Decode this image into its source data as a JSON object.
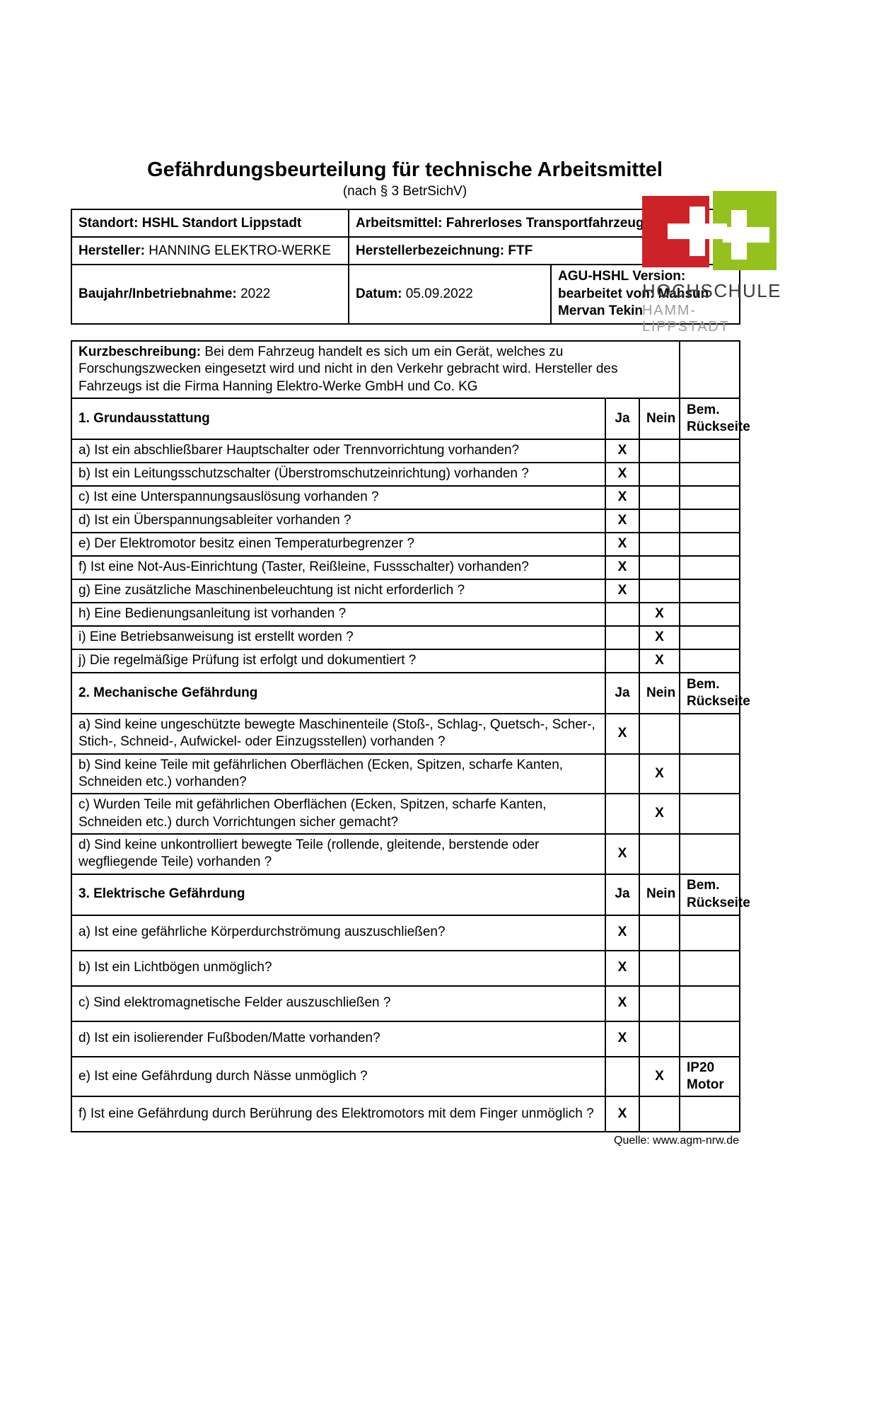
{
  "logo": {
    "line1": "HOCHSCHULE",
    "line2": "HAMM-LIPPSTADT",
    "red": "#cd2328",
    "green": "#95c11f"
  },
  "title": "Gefährdungsbeurteilung für technische Arbeitsmittel",
  "subtitle": "(nach § 3 BetrSichV)",
  "info": {
    "standort": {
      "label": "Standort:",
      "value": "HSHL Standort Lippstadt"
    },
    "arbeitsmittel": {
      "label": "Arbeitsmittel:",
      "value": "Fahrerloses Transportfahrzeug"
    },
    "hersteller": {
      "label": "Hersteller:",
      "value": "HANNING ELEKTRO-WERKE"
    },
    "herstellerbezeichnung": {
      "label": "Herstellerbezeichnung:",
      "value": "FTF"
    },
    "baujahr": {
      "label": "Baujahr/Inbetriebnahme:",
      "value": "2022"
    },
    "datum": {
      "label": "Datum:",
      "value": "05.09.2022"
    },
    "version": {
      "label": "AGU-HSHL Version:",
      "value": "bearbeitet von: Mahsun Mervan Tekin"
    }
  },
  "kurzbeschreibung": {
    "label": "Kurzbeschreibung:",
    "text": "Bei dem Fahrzeug handelt es sich um ein Gerät, welches zu Forschungszwecken eingesetzt wird und nicht in den Verkehr gebracht wird. Hersteller des Fahrzeugs ist die Firma Hanning Elektro-Werke GmbH und Co. KG"
  },
  "columns": {
    "ja": "Ja",
    "nein": "Nein",
    "bem": "Bem.\nRückseite"
  },
  "sections": [
    {
      "title": "1. Grundausstattung",
      "items": [
        {
          "text": "a) Ist ein abschließbarer Hauptschalter oder Trennvorrichtung vorhanden?",
          "ja": "X",
          "nein": "",
          "bem": ""
        },
        {
          "text": "b) Ist ein Leitungsschutzschalter (Überstromschutzeinrichtung) vorhanden ?",
          "ja": "X",
          "nein": "",
          "bem": ""
        },
        {
          "text": "c) Ist eine Unterspannungsauslösung vorhanden ?",
          "ja": "X",
          "nein": "",
          "bem": ""
        },
        {
          "text": "d) Ist ein Überspannungsableiter vorhanden ?",
          "ja": "X",
          "nein": "",
          "bem": ""
        },
        {
          "text": "e) Der Elektromotor besitz einen Temperaturbegrenzer ?",
          "ja": "X",
          "nein": "",
          "bem": ""
        },
        {
          "text": "f) Ist eine Not-Aus-Einrichtung (Taster, Reißleine, Fussschalter) vorhanden?",
          "ja": "X",
          "nein": "",
          "bem": ""
        },
        {
          "text": "g) Eine zusätzliche Maschinenbeleuchtung ist nicht erforderlich ?",
          "ja": "X",
          "nein": "",
          "bem": ""
        },
        {
          "text": "h) Eine Bedienungsanleitung ist vorhanden ?",
          "ja": "",
          "nein": "X",
          "bem": ""
        },
        {
          "text": "i) Eine Betriebsanweisung ist erstellt worden ?",
          "ja": "",
          "nein": "X",
          "bem": ""
        },
        {
          "text": "j) Die regelmäßige Prüfung ist erfolgt und dokumentiert ?",
          "ja": "",
          "nein": "X",
          "bem": ""
        }
      ]
    },
    {
      "title": "2. Mechanische Gefährdung",
      "items": [
        {
          "text": "a) Sind keine ungeschützte bewegte Maschinenteile (Stoß-, Schlag-, Quetsch-, Scher-, Stich-, Schneid-, Aufwickel- oder Einzugsstellen) vorhanden ?",
          "ja": "X",
          "nein": "",
          "bem": ""
        },
        {
          "text": "b) Sind keine Teile mit gefährlichen Oberflächen (Ecken, Spitzen, scharfe Kanten, Schneiden etc.) vorhanden?",
          "ja": "",
          "nein": "X",
          "bem": ""
        },
        {
          "text": "c) Wurden Teile mit gefährlichen Oberflächen (Ecken, Spitzen, scharfe Kanten, Schneiden etc.) durch Vorrichtungen sicher gemacht?",
          "ja": "",
          "nein": "X",
          "bem": ""
        },
        {
          "text": "d) Sind keine unkontrolliert bewegte Teile (rollende, gleitende, berstende oder wegfliegende Teile) vorhanden ?",
          "ja": "X",
          "nein": "",
          "bem": ""
        }
      ]
    },
    {
      "title": "3. Elektrische Gefährdung",
      "items": [
        {
          "text": "a) Ist eine gefährliche Körperdurchströmung auszuschließen?",
          "ja": "X",
          "nein": "",
          "bem": ""
        },
        {
          "text": "b) Ist ein Lichtbögen unmöglich?",
          "ja": "X",
          "nein": "",
          "bem": ""
        },
        {
          "text": "c) Sind elektromagnetische Felder auszuschließen ?",
          "ja": "X",
          "nein": "",
          "bem": ""
        },
        {
          "text": "d) Ist ein isolierender Fußboden/Matte vorhanden?",
          "ja": "X",
          "nein": "",
          "bem": ""
        },
        {
          "text": "e) Ist eine Gefährdung durch Nässe unmöglich ?",
          "ja": "",
          "nein": "X",
          "bem": "IP20\nMotor"
        },
        {
          "text": "f) Ist eine Gefährdung durch Berührung des Elektromotors mit dem Finger unmöglich ?",
          "ja": "X",
          "nein": "",
          "bem": ""
        }
      ]
    }
  ],
  "footer": "Quelle: www.agm-nrw.de"
}
